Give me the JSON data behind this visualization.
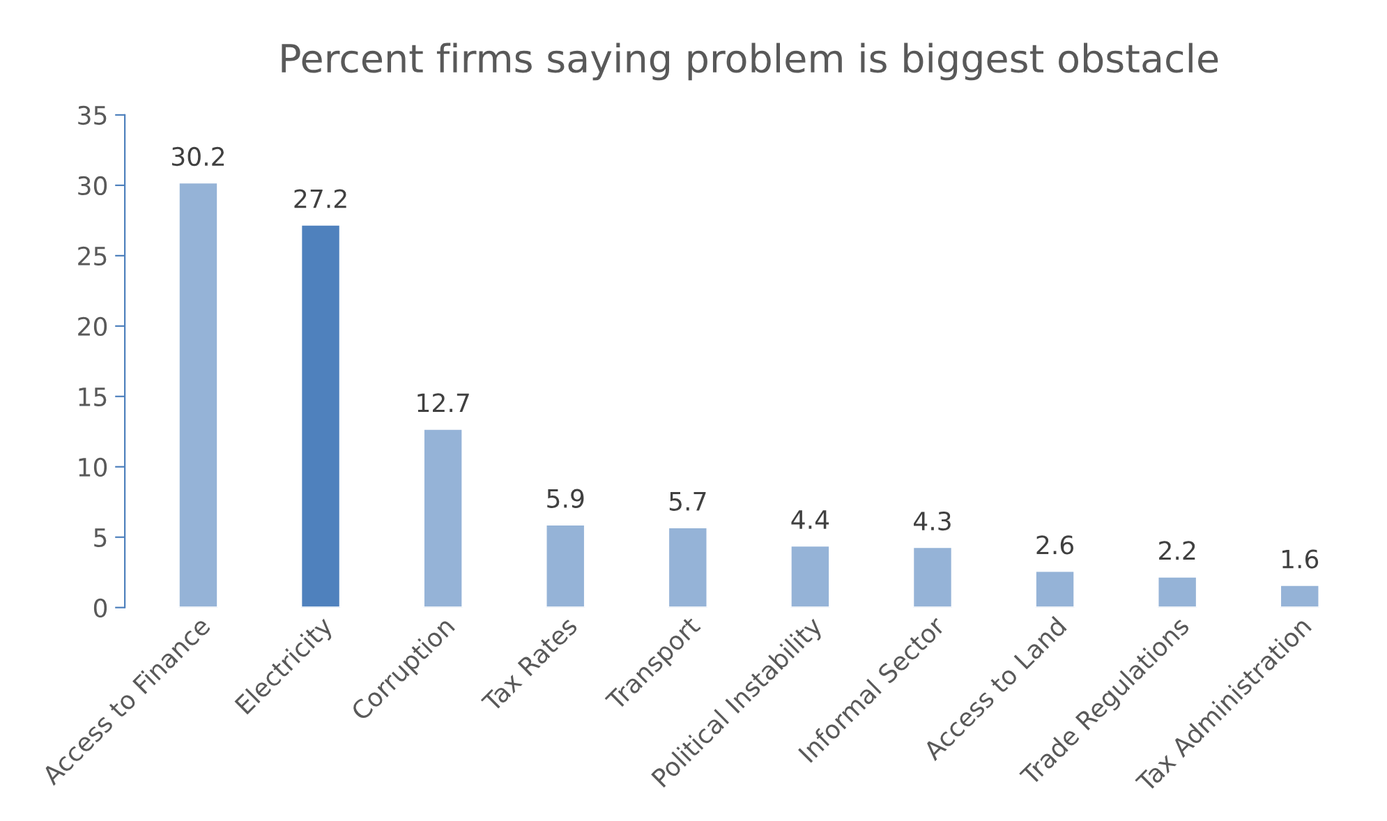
{
  "chart_data": {
    "type": "bar",
    "title": "Percent firms saying problem is biggest obstacle",
    "categories": [
      "Access to Finance",
      "Electricity",
      "Corruption",
      "Tax Rates",
      "Transport",
      "Political Instability",
      "Informal Sector",
      "Access to Land",
      "Trade Regulations",
      "Tax Administration"
    ],
    "values": [
      30.2,
      27.2,
      12.7,
      5.9,
      5.7,
      4.4,
      4.3,
      2.6,
      2.2,
      1.6
    ],
    "colors": [
      "#95b3d7",
      "#4f81bd",
      "#95b3d7",
      "#95b3d7",
      "#95b3d7",
      "#95b3d7",
      "#95b3d7",
      "#95b3d7",
      "#95b3d7",
      "#95b3d7"
    ],
    "ylim": [
      0,
      35
    ],
    "yticks": [
      0,
      5,
      10,
      15,
      20,
      25,
      30,
      35
    ],
    "grid": false,
    "data_labels": true,
    "legend": false
  }
}
